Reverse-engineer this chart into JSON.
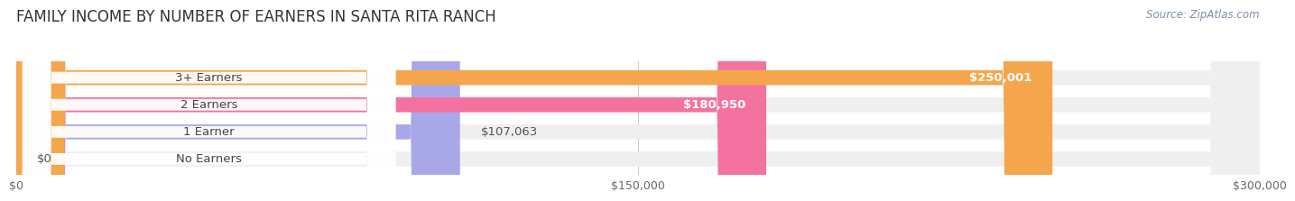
{
  "title": "FAMILY INCOME BY NUMBER OF EARNERS IN SANTA RITA RANCH",
  "source": "Source: ZipAtlas.com",
  "categories": [
    "No Earners",
    "1 Earner",
    "2 Earners",
    "3+ Earners"
  ],
  "values": [
    0,
    107063,
    180950,
    250001
  ],
  "bar_colors": [
    "#5ecfca",
    "#a8a8e8",
    "#f472a0",
    "#f5a64d"
  ],
  "bar_bg_color": "#efefef",
  "value_labels": [
    "$0",
    "$107,063",
    "$180,950",
    "$250,001"
  ],
  "xlim": [
    0,
    300000
  ],
  "xticks": [
    0,
    150000,
    300000
  ],
  "xtick_labels": [
    "$0",
    "$150,000",
    "$300,000"
  ],
  "background_color": "#ffffff",
  "title_fontsize": 12,
  "bar_height": 0.55,
  "label_fontsize": 9.5
}
